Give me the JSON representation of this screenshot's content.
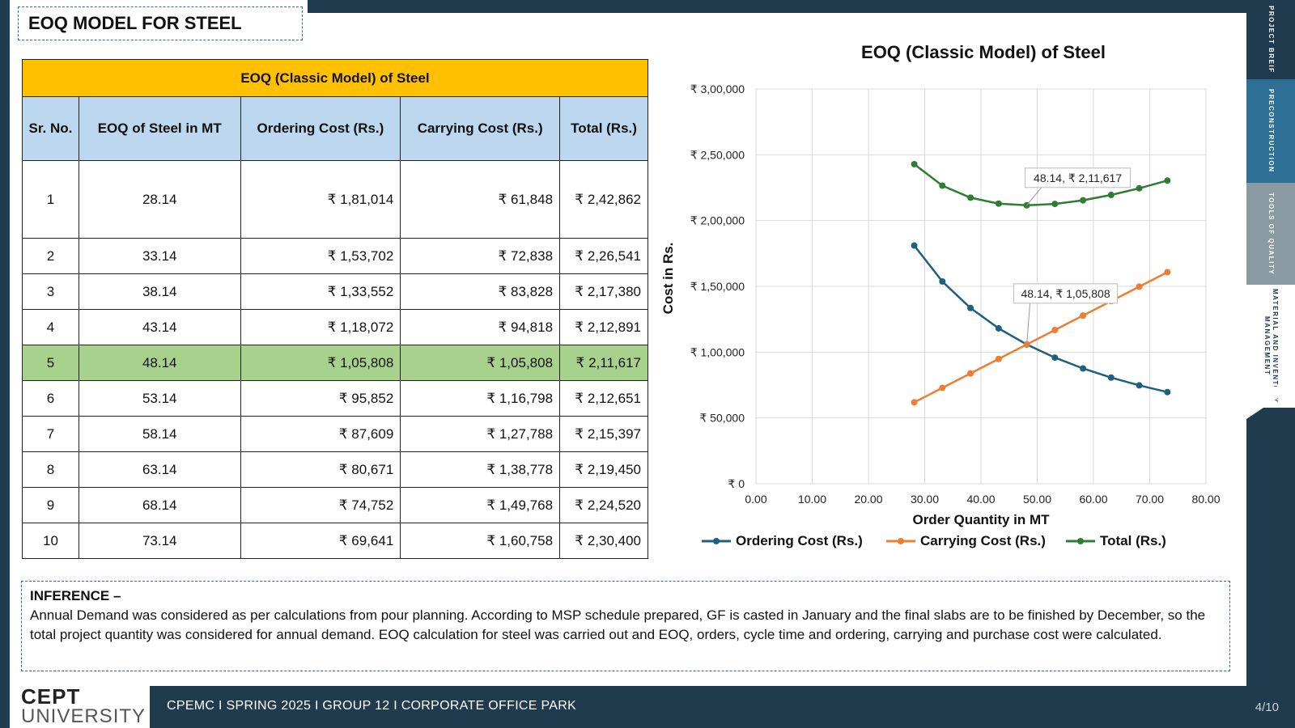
{
  "slide": {
    "title": "EOQ MODEL FOR STEEL",
    "rail_tabs": [
      "PROJECT BREIF",
      "PRECONSTRUCTION",
      "TOOLS OF QUALITY",
      "MATERIAL AND INVENTORY MANAGEMENT"
    ],
    "footer": "CPEMC I SPRING 2025 I GROUP 12 I CORPORATE  OFFICE  PARK",
    "page": "4/10",
    "logo": {
      "line1": "CEPT",
      "line2": "UNIVERSITY"
    },
    "colors": {
      "navy": "#1f3b4d",
      "accent_blue": "#2e6f95",
      "header_yellow": "#ffc000",
      "header_blue": "#bdd7ee",
      "highlight_green": "#a9d18e"
    }
  },
  "table": {
    "caption": "EOQ (Classic Model) of Steel",
    "headers": [
      "Sr. No.",
      "EOQ of Steel in MT",
      "Ordering Cost (Rs.)",
      "Carrying Cost (Rs.)",
      "Total (Rs.)"
    ],
    "rows": [
      [
        "1",
        "28.14",
        "₹ 1,81,014",
        "₹ 61,848",
        "₹ 2,42,862"
      ],
      [
        "2",
        "33.14",
        "₹ 1,53,702",
        "₹ 72,838",
        "₹ 2,26,541"
      ],
      [
        "3",
        "38.14",
        "₹ 1,33,552",
        "₹ 83,828",
        "₹ 2,17,380"
      ],
      [
        "4",
        "43.14",
        "₹ 1,18,072",
        "₹ 94,818",
        "₹ 2,12,891"
      ],
      [
        "5",
        "48.14",
        "₹ 1,05,808",
        "₹ 1,05,808",
        "₹ 2,11,617"
      ],
      [
        "6",
        "53.14",
        "₹ 95,852",
        "₹ 1,16,798",
        "₹ 2,12,651"
      ],
      [
        "7",
        "58.14",
        "₹ 87,609",
        "₹ 1,27,788",
        "₹ 2,15,397"
      ],
      [
        "8",
        "63.14",
        "₹ 80,671",
        "₹ 1,38,778",
        "₹ 2,19,450"
      ],
      [
        "9",
        "68.14",
        "₹ 74,752",
        "₹ 1,49,768",
        "₹ 2,24,520"
      ],
      [
        "10",
        "73.14",
        "₹ 69,641",
        "₹ 1,60,758",
        "₹ 2,30,400"
      ]
    ],
    "highlight_row": 5
  },
  "inference": {
    "heading": "INFERENCE –",
    "body": "Annual Demand was considered as per calculations from pour planning. According to MSP schedule prepared, GF is casted in January and the final slabs are to be finished by December,  so the total project quantity was considered for annual demand. EOQ calculation for steel was carried out and EOQ, orders, cycle time and ordering, carrying and purchase cost were calculated."
  },
  "chart_data": {
    "type": "line",
    "title": "EOQ (Classic Model) of Steel",
    "xlabel": "Order Quantity in MT",
    "ylabel": "Cost in Rs.",
    "xlim": [
      0,
      80
    ],
    "ylim": [
      0,
      300000
    ],
    "x_ticks": [
      "0.00",
      "10.00",
      "20.00",
      "30.00",
      "40.00",
      "50.00",
      "60.00",
      "70.00",
      "80.00"
    ],
    "y_ticks": [
      "₹ 0",
      "₹ 50,000",
      "₹ 1,00,000",
      "₹ 1,50,000",
      "₹ 2,00,000",
      "₹ 2,50,000",
      "₹ 3,00,000"
    ],
    "grid": true,
    "legend": "bottom",
    "x": [
      28.14,
      33.14,
      38.14,
      43.14,
      48.14,
      53.14,
      58.14,
      63.14,
      68.14,
      73.14
    ],
    "series": [
      {
        "name": "Ordering Cost (Rs.)",
        "color": "#1f5f7f",
        "values": [
          181014,
          153702,
          133552,
          118072,
          105808,
          95852,
          87609,
          80671,
          74752,
          69641
        ]
      },
      {
        "name": "Carrying Cost (Rs.)",
        "color": "#ed7d31",
        "values": [
          61848,
          72838,
          83828,
          94818,
          105808,
          116798,
          127788,
          138778,
          149768,
          160758
        ]
      },
      {
        "name": "Total (Rs.)",
        "color": "#2e7d32",
        "values": [
          242862,
          226541,
          217380,
          212891,
          211617,
          212651,
          215397,
          219450,
          224520,
          230400
        ]
      }
    ],
    "annotations": [
      {
        "text": "48.14, ₹ 2,11,617",
        "x": 48.14,
        "y": 211617
      },
      {
        "text": "48.14, ₹ 1,05,808",
        "x": 48.14,
        "y": 105808
      }
    ]
  }
}
